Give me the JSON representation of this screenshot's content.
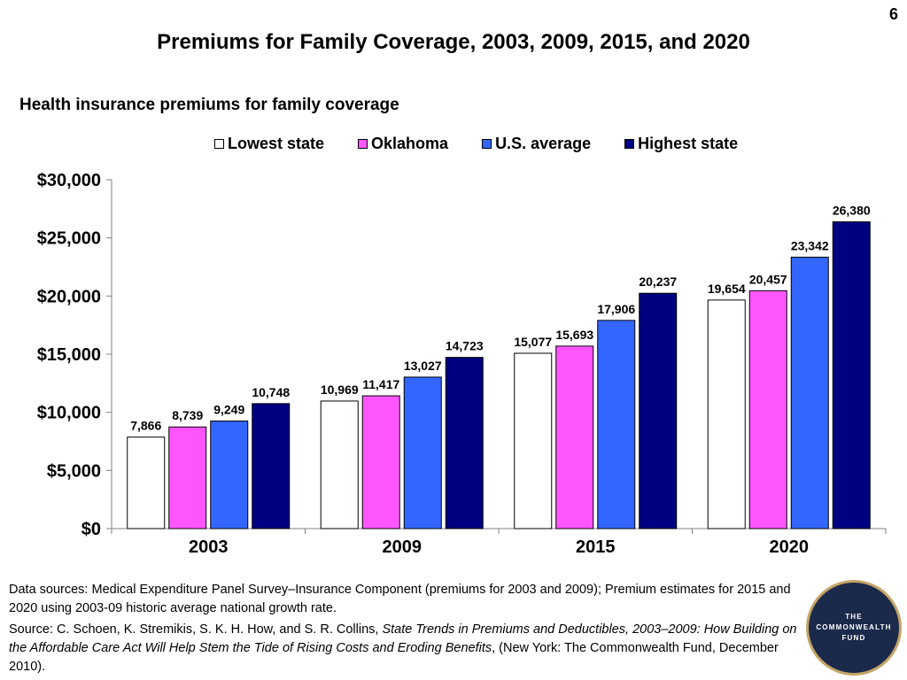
{
  "page_number": "6",
  "title": "Premiums for Family Coverage, 2003, 2009, 2015, and 2020",
  "notes": {
    "data_sources": "Data sources: Medical Expenditure Panel Survey–Insurance Component (premiums for 2003 and 2009); Premium estimates for 2015 and 2020 using 2003-09 historic average national growth rate.",
    "source_prefix": "Source: C. Schoen, K. Stremikis, S. K. H. How, and S. R. Collins, ",
    "source_title": "State Trends in Premiums and Deductibles, 2003–2009: How Building on the Affordable Care Act Will Help Stem the Tide of Rising Costs and Eroding Benefits",
    "source_suffix": ", (New York: The Commonwealth Fund, December 2010)."
  },
  "logo": {
    "line1": "THE",
    "line2": "COMMONWEALTH",
    "line3": "FUND"
  },
  "chart_data": {
    "type": "bar",
    "title": "Health insurance premiums for family coverage",
    "categories": [
      "2003",
      "2009",
      "2015",
      "2020"
    ],
    "series": [
      {
        "name": "Lowest state",
        "color": "#ffffff",
        "values": [
          7866,
          10969,
          15077,
          19654
        ],
        "labels": [
          "7,866",
          "10,969",
          "15,077",
          "19,654"
        ]
      },
      {
        "name": "Oklahoma",
        "color": "#ff55ff",
        "values": [
          8739,
          11417,
          15693,
          20457
        ],
        "labels": [
          "8,739",
          "11,417",
          "15,693",
          "20,457"
        ]
      },
      {
        "name": "U.S. average",
        "color": "#3366ff",
        "values": [
          9249,
          13027,
          17906,
          23342
        ],
        "labels": [
          "9,249",
          "13,027",
          "17,906",
          "23,342"
        ]
      },
      {
        "name": "Highest state",
        "color": "#000080",
        "values": [
          10748,
          14723,
          20237,
          26380
        ],
        "labels": [
          "10,748",
          "14,723",
          "20,237",
          "26,380"
        ]
      }
    ],
    "ylim": [
      0,
      30000
    ],
    "yticks": [
      0,
      5000,
      10000,
      15000,
      20000,
      25000,
      30000
    ],
    "ytick_labels": [
      "$0",
      "$5,000",
      "$10,000",
      "$15,000",
      "$20,000",
      "$25,000",
      "$30,000"
    ],
    "legend_position": "top",
    "grid": false
  }
}
